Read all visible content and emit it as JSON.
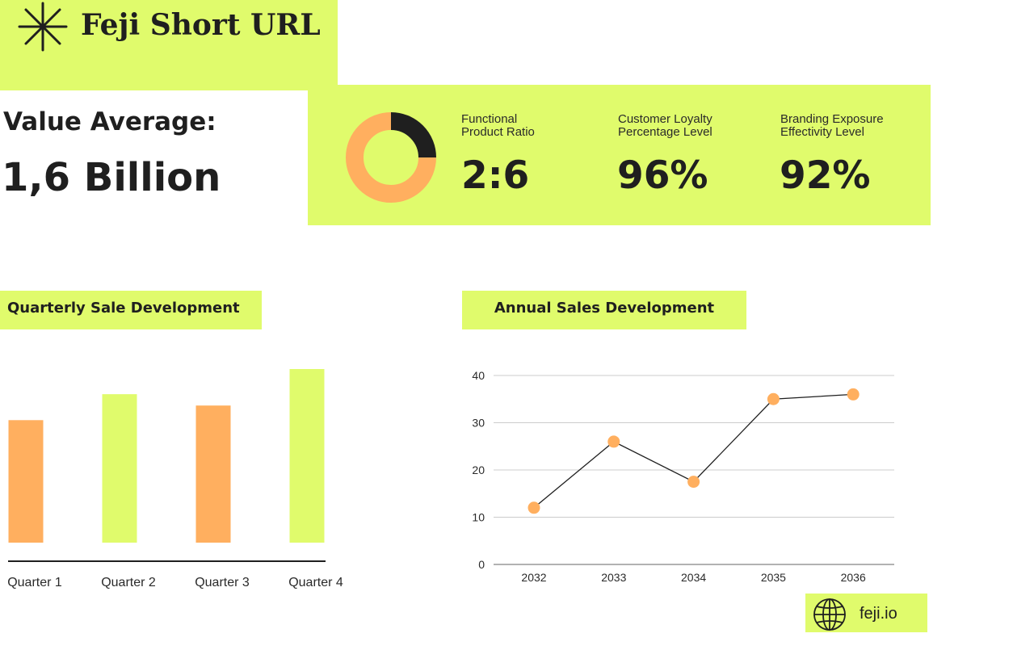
{
  "brand": {
    "name": "Feji Short URL",
    "icon": "asterisk-burst-icon"
  },
  "value_average": {
    "label": "Value Average:",
    "value": "1,6 Billion"
  },
  "kpis": [
    {
      "label": "Functional\nProduct Ratio",
      "value": "2:6"
    },
    {
      "label": "Customer Loyalty\nPercentage Level",
      "value": "96%"
    },
    {
      "label": "Branding Exposure\nEffectivity Level",
      "value": "92%"
    }
  ],
  "colors": {
    "lime": "#e0fb6c",
    "orange": "#ffaf5f",
    "dark": "#1f1f1f",
    "grid": "#cccccc"
  },
  "chart_data": [
    {
      "type": "pie",
      "variant": "donut",
      "slices": [
        {
          "label": "dark",
          "value": 2,
          "color": "#1f1f1f"
        },
        {
          "label": "orange",
          "value": 6,
          "color": "#ffaf5f"
        }
      ]
    },
    {
      "type": "bar",
      "title": "Quarterly Sale Development",
      "categories": [
        "Quarter 1",
        "Quarter 2",
        "Quarter 3",
        "Quarter 4"
      ],
      "values": [
        151,
        183,
        169,
        214
      ],
      "bar_colors": [
        "#ffaf5f",
        "#e0fb6c",
        "#ffaf5f",
        "#e0fb6c"
      ],
      "ylim": [
        0,
        214
      ],
      "grid": false,
      "legend": "none"
    },
    {
      "type": "line",
      "title": "Annual Sales Development",
      "x": [
        "2032",
        "2033",
        "2034",
        "2035",
        "2036"
      ],
      "series": [
        {
          "values": [
            12,
            26,
            17.5,
            35,
            36
          ]
        }
      ],
      "yticks": [
        0,
        10,
        20,
        30,
        40
      ],
      "ylim": [
        0,
        40
      ],
      "grid": true,
      "legend": "none",
      "marker_color": "#ffaf5f",
      "line_color": "#1f1f1f"
    }
  ],
  "footer": {
    "url": "feji.io",
    "icon": "globe-icon"
  }
}
